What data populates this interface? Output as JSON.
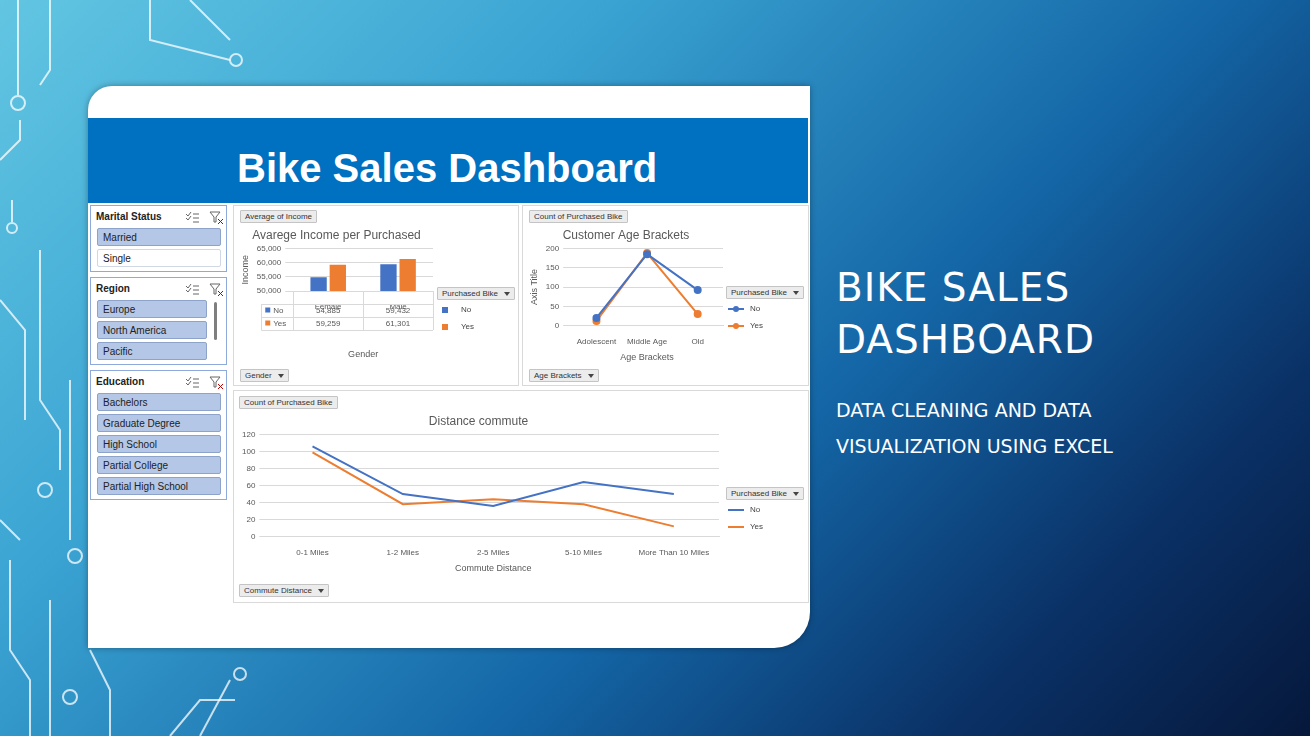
{
  "slide": {
    "title": "BIKE SALES DASHBOARD",
    "subtitle": "DATA CLEANING AND DATA VISUALIZATION USING EXCEL"
  },
  "dashboard": {
    "title": "Bike Sales Dashboard",
    "slicers": [
      {
        "title": "Marital Status",
        "items": [
          {
            "label": "Married",
            "selected": true
          },
          {
            "label": "Single",
            "selected": false
          }
        ]
      },
      {
        "title": "Region",
        "items": [
          {
            "label": "Europe",
            "selected": true
          },
          {
            "label": "North America",
            "selected": true
          },
          {
            "label": "Pacific",
            "selected": true
          }
        ]
      },
      {
        "title": "Education",
        "items": [
          {
            "label": "Bachelors",
            "selected": true
          },
          {
            "label": "Graduate Degree",
            "selected": true
          },
          {
            "label": "High School",
            "selected": true
          },
          {
            "label": "Partial College",
            "selected": true
          },
          {
            "label": "Partial High School",
            "selected": true
          }
        ]
      }
    ]
  },
  "chart_data": [
    {
      "type": "bar",
      "title": "Avarege Income per Purchased",
      "x_label": "Gender",
      "y_label": "Income",
      "categories": [
        "Female",
        "Male"
      ],
      "series": [
        {
          "name": "No",
          "color": "#4472c4",
          "values": [
            54885,
            59432
          ],
          "value_labels": [
            "54,885",
            "59,432"
          ]
        },
        {
          "name": "Yes",
          "color": "#ed7d31",
          "values": [
            59259,
            61301
          ],
          "value_labels": [
            "59,259",
            "61,301"
          ]
        }
      ],
      "ylim": [
        50000,
        65000
      ],
      "yticks": [
        {
          "value": 50000,
          "label": "50,000"
        },
        {
          "value": 55000,
          "label": "55,000"
        },
        {
          "value": 60000,
          "label": "60,000"
        },
        {
          "value": 65000,
          "label": "65,000"
        }
      ],
      "grid": true,
      "legend": "right",
      "legend_title": "Purchased Bike",
      "annotations": [
        "Average of Income",
        "Gender"
      ]
    },
    {
      "type": "line",
      "title": "Customer Age Brackets",
      "x_label": "Age Brackets",
      "y_label": "Axis Title",
      "categories": [
        "Adolescent",
        "Middle Age",
        "Old"
      ],
      "series": [
        {
          "name": "No",
          "color": "#4472c4",
          "values": [
            20,
            185,
            92
          ]
        },
        {
          "name": "Yes",
          "color": "#ed7d31",
          "values": [
            12,
            188,
            30
          ]
        }
      ],
      "ylim": [
        0,
        200
      ],
      "yticks": [
        0,
        50,
        100,
        150,
        200
      ],
      "grid": true,
      "legend": "right",
      "legend_title": "Purchased Bike",
      "marker": "circle",
      "annotations": [
        "Count of Purchased Bike",
        "Age Brackets"
      ]
    },
    {
      "type": "line",
      "title": "Distance commute",
      "x_label": "Commute Distance",
      "categories": [
        "0-1 Miles",
        "1-2 Miles",
        "2-5 Miles",
        "5-10 Miles",
        "More Than 10 Miles"
      ],
      "series": [
        {
          "name": "No",
          "color": "#4472c4",
          "values": [
            106,
            50,
            36,
            64,
            50
          ]
        },
        {
          "name": "Yes",
          "color": "#ed7d31",
          "values": [
            99,
            38,
            44,
            38,
            12
          ]
        }
      ],
      "ylim": [
        0,
        120
      ],
      "yticks": [
        0,
        20,
        40,
        60,
        80,
        100,
        120
      ],
      "grid": true,
      "legend": "right",
      "legend_title": "Purchased Bike",
      "marker": "none",
      "annotations": [
        "Count of Purchased Bike",
        "Commute Distance"
      ]
    }
  ]
}
